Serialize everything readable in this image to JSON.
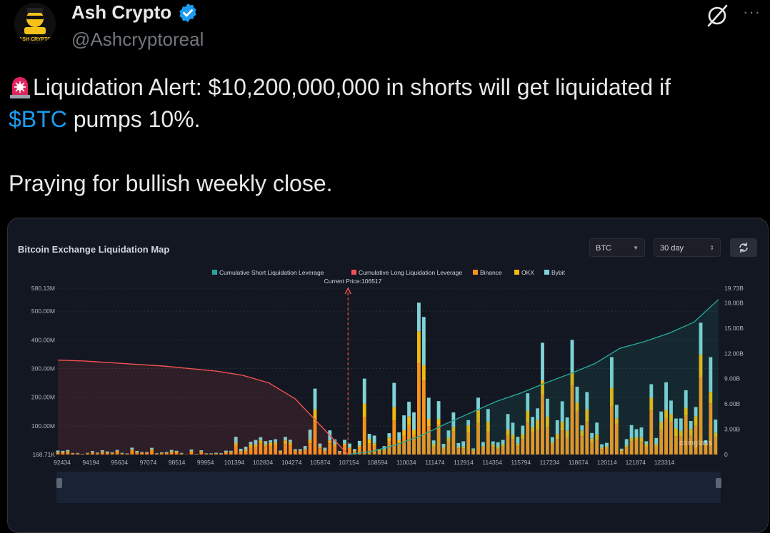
{
  "author": {
    "name": "Ash Crypto",
    "handle": "@Ashcryptoreal",
    "avatar_text": "ASH CRYPTO",
    "verified": true
  },
  "actions": {
    "more_label": "···"
  },
  "tweet": {
    "line1_text": "Liquidation Alert: $10,200,000,000 in shorts will get liquidated if",
    "cashtag": "$BTC",
    "line2_rest": " pumps 10%.",
    "line3": "Praying for bullish weekly close.",
    "emoji": "siren"
  },
  "widget": {
    "title": "Bitcoin Exchange Liquidation Map",
    "symbol_select": "BTC",
    "period_select": "30 day",
    "refresh_icon": "refresh-icon",
    "watermark": "coinglass"
  },
  "colors": {
    "short_cum": "#26a69a",
    "long_cum": "#ef5350",
    "binance": "#f7931a",
    "okx": "#f0b90b",
    "bybit": "#7fd3d6",
    "cashtag": "#1d9bf0"
  },
  "chart_data": {
    "type": "bar",
    "legend": [
      {
        "name": "Cumulative Short Liquidation Leverage",
        "color": "#26a69a"
      },
      {
        "name": "Cumulative Long Liquidation Leverage",
        "color": "#ef5350"
      },
      {
        "name": "Binance",
        "color": "#f7931a"
      },
      {
        "name": "OKX",
        "color": "#f0b90b"
      },
      {
        "name": "Bybit",
        "color": "#7fd3d6"
      }
    ],
    "current_price_label": "Current Price:106517",
    "current_price": 106517,
    "x_ticks": [
      "92434",
      "94194",
      "95634",
      "97074",
      "98514",
      "99954",
      "101394",
      "102834",
      "104274",
      "105874",
      "107154",
      "108594",
      "110034",
      "111474",
      "112914",
      "114354",
      "115794",
      "117234",
      "118674",
      "120114",
      "121874",
      "123314"
    ],
    "y_left_ticks": [
      "580.13M",
      "500.00M",
      "400.00M",
      "300.00M",
      "200.00M",
      "100.00M",
      "168.71K"
    ],
    "y_right_ticks": [
      "19.73B",
      "18.00B",
      "15.00B",
      "12.00B",
      "9.00B",
      "6.00B",
      "3.00B",
      "0"
    ],
    "ylim_left": [
      0,
      580.13
    ],
    "ylim_right": [
      0,
      19.73
    ],
    "long_cumulative_B": [
      11.2,
      11.1,
      10.9,
      10.7,
      10.5,
      10.2,
      9.9,
      9.4,
      8.5,
      6.6,
      3.3,
      0
    ],
    "short_cumulative_B": [
      0,
      0.4,
      1.2,
      2.3,
      3.7,
      5.0,
      6.3,
      7.3,
      8.5,
      9.6,
      10.8,
      12.6,
      13.4,
      14.4,
      15.7,
      18.4
    ],
    "price_range": [
      92434,
      124500
    ],
    "price_step": 240,
    "peaks_M": [
      [
        105000,
        230
      ],
      [
        107300,
        265
      ],
      [
        108700,
        250
      ],
      [
        109900,
        530
      ],
      [
        110250,
        480
      ],
      [
        114500,
        370
      ],
      [
        116000,
        390
      ],
      [
        117400,
        400
      ],
      [
        119400,
        340
      ],
      [
        122600,
        420
      ],
      [
        123600,
        460
      ],
      [
        124100,
        340
      ]
    ]
  }
}
